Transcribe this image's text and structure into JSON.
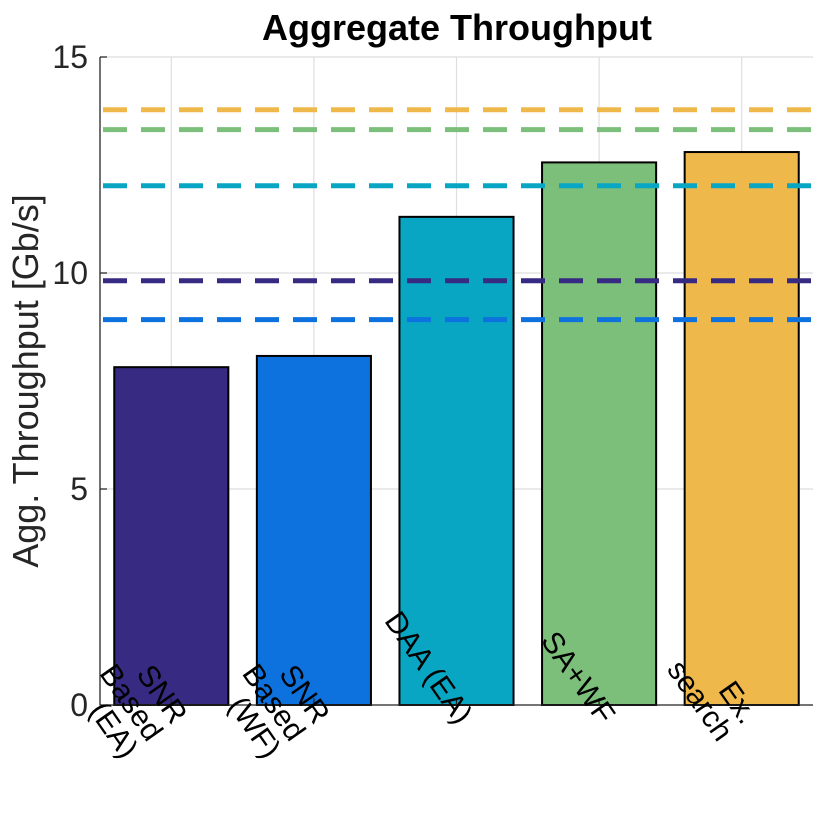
{
  "chart_data": {
    "type": "bar",
    "title": "Aggregate Throughput",
    "xlabel": "",
    "ylabel": "Agg. Throughput [Gb/s]",
    "ylim": [
      0,
      15
    ],
    "yticks": [
      0,
      5,
      10,
      15
    ],
    "grid": true,
    "categories": [
      [
        "SNR",
        "Based",
        "(EA)"
      ],
      [
        "SNR",
        "Based",
        "(WF)"
      ],
      [
        "DAA (EA)"
      ],
      [
        "SA+WF"
      ],
      [
        "Ex.",
        "search"
      ]
    ],
    "values": [
      7.82,
      8.08,
      11.3,
      12.56,
      12.8
    ],
    "colors": [
      "#372a82",
      "#0d72dd",
      "#09a6c4",
      "#7cbf7a",
      "#efb84a"
    ],
    "reference_lines": [
      {
        "value": 13.78,
        "color": "#efb84a"
      },
      {
        "value": 13.32,
        "color": "#7cbf7a"
      },
      {
        "value": 12.02,
        "color": "#09a6c4"
      },
      {
        "value": 9.82,
        "color": "#372a82"
      },
      {
        "value": 8.92,
        "color": "#0d72dd"
      }
    ]
  }
}
